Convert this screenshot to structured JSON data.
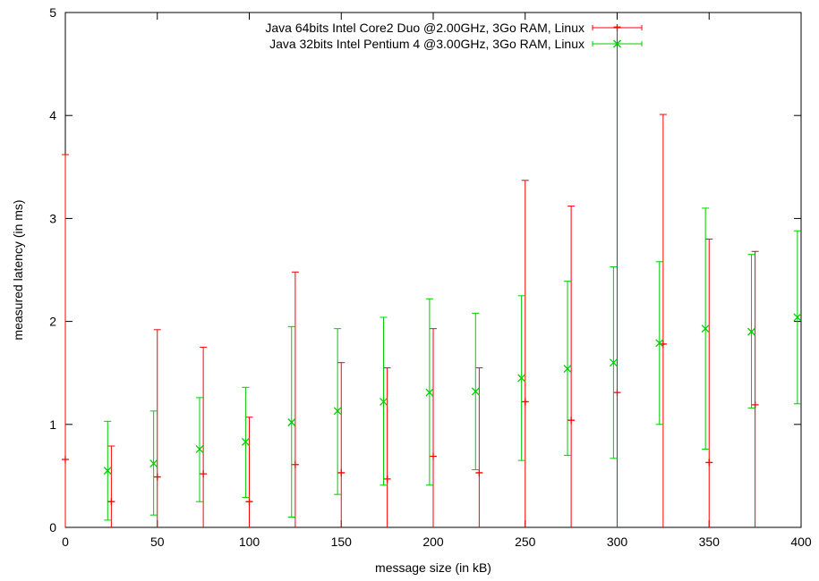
{
  "chart_data": {
    "type": "scatter",
    "xlabel": "message size (in kB)",
    "ylabel": "measured latency (in ms)",
    "xlim": [
      0,
      400
    ],
    "ylim": [
      0,
      5
    ],
    "x_ticks": [
      0,
      50,
      100,
      150,
      200,
      250,
      300,
      350,
      400
    ],
    "y_ticks": [
      0,
      1,
      2,
      3,
      4,
      5
    ],
    "grid": false,
    "legend_position": "top-center",
    "series": [
      {
        "name": "Java 64bits Intel Core2 Duo @2.00GHz, 3Go RAM, Linux",
        "color": "#ff0000",
        "marker": "plus",
        "points": [
          {
            "x": 0,
            "y": 0.66,
            "low": 0.0,
            "high": 3.62
          },
          {
            "x": 25,
            "y": 0.25,
            "low": 0.0,
            "high": 0.79
          },
          {
            "x": 50,
            "y": 0.49,
            "low": 0.0,
            "high": 1.92
          },
          {
            "x": 75,
            "y": 0.52,
            "low": 0.0,
            "high": 1.75
          },
          {
            "x": 100,
            "y": 0.25,
            "low": 0.0,
            "high": 1.07
          },
          {
            "x": 125,
            "y": 0.61,
            "low": 0.0,
            "high": 2.48
          },
          {
            "x": 150,
            "y": 0.53,
            "low": 0.0,
            "high": 1.6
          },
          {
            "x": 175,
            "y": 0.47,
            "low": 0.0,
            "high": 1.55
          },
          {
            "x": 200,
            "y": 0.69,
            "low": 0.0,
            "high": 1.93
          },
          {
            "x": 225,
            "y": 0.53,
            "low": 0.0,
            "high": 1.55
          },
          {
            "x": 250,
            "y": 1.22,
            "low": 0.0,
            "high": 3.37
          },
          {
            "x": 275,
            "y": 1.04,
            "low": 0.0,
            "high": 3.12
          },
          {
            "x": 300,
            "y": 1.31,
            "low": 0.0,
            "high": 4.86
          },
          {
            "x": 325,
            "y": 1.78,
            "low": 0.0,
            "high": 4.01
          },
          {
            "x": 350,
            "y": 0.63,
            "low": 0.0,
            "high": 2.8
          },
          {
            "x": 375,
            "y": 1.19,
            "low": 0.0,
            "high": 2.68
          }
        ]
      },
      {
        "name": "Java 32bits Intel Pentium 4 @3.00GHz, 3Go RAM, Linux",
        "color": "#00cc00",
        "marker": "cross",
        "points": [
          {
            "x": 23,
            "y": 0.55,
            "low": 0.07,
            "high": 1.03
          },
          {
            "x": 48,
            "y": 0.62,
            "low": 0.12,
            "high": 1.13
          },
          {
            "x": 73,
            "y": 0.76,
            "low": 0.25,
            "high": 1.26
          },
          {
            "x": 98,
            "y": 0.83,
            "low": 0.29,
            "high": 1.36
          },
          {
            "x": 123,
            "y": 1.02,
            "low": 0.1,
            "high": 1.95
          },
          {
            "x": 148,
            "y": 1.13,
            "low": 0.32,
            "high": 1.93
          },
          {
            "x": 173,
            "y": 1.22,
            "low": 0.41,
            "high": 2.04
          },
          {
            "x": 198,
            "y": 1.31,
            "low": 0.41,
            "high": 2.22
          },
          {
            "x": 223,
            "y": 1.32,
            "low": 0.56,
            "high": 2.08
          },
          {
            "x": 248,
            "y": 1.45,
            "low": 0.65,
            "high": 2.25
          },
          {
            "x": 273,
            "y": 1.54,
            "low": 0.7,
            "high": 2.39
          },
          {
            "x": 298,
            "y": 1.6,
            "low": 0.67,
            "high": 2.53
          },
          {
            "x": 323,
            "y": 1.79,
            "low": 1.0,
            "high": 2.58
          },
          {
            "x": 348,
            "y": 1.93,
            "low": 0.76,
            "high": 3.1
          },
          {
            "x": 373,
            "y": 1.9,
            "low": 1.16,
            "high": 2.65
          },
          {
            "x": 398,
            "y": 2.04,
            "low": 1.2,
            "high": 2.88
          }
        ]
      }
    ]
  }
}
